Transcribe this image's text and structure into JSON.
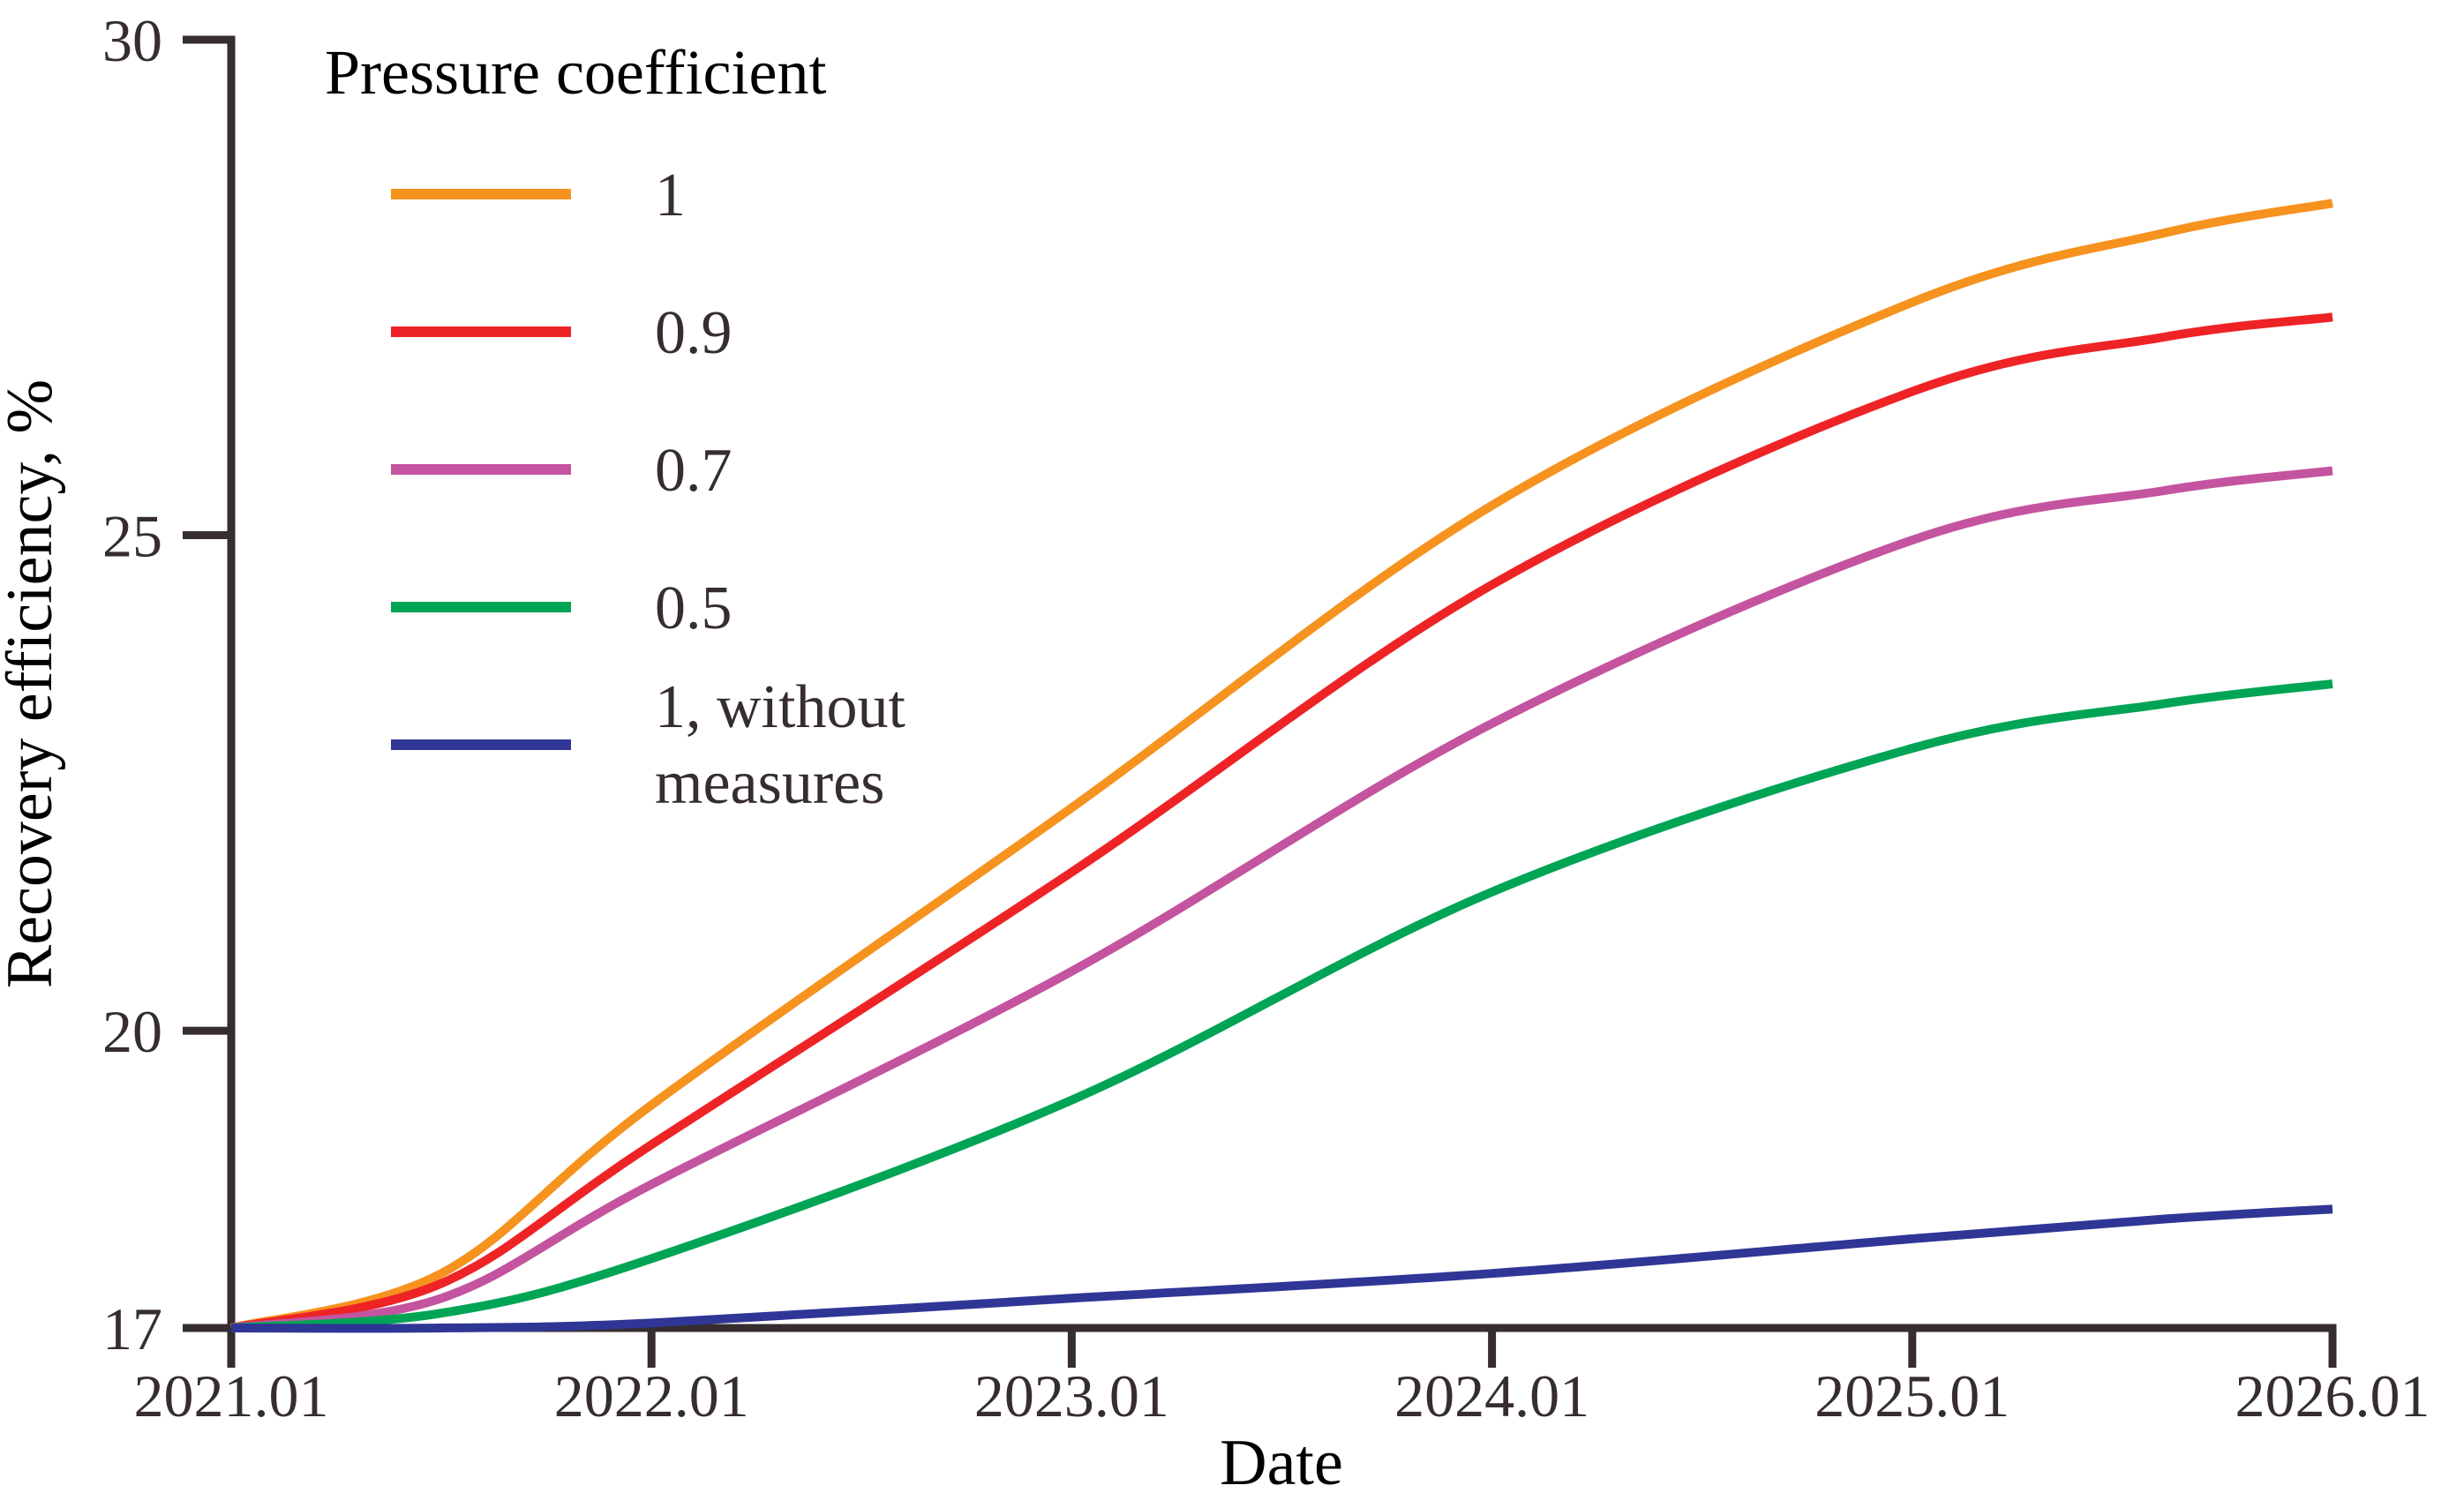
{
  "figure": {
    "background": "#ffffff",
    "text_color": "#362d2e",
    "axis_color": "#362d2e"
  },
  "chart_data": {
    "type": "line",
    "title": "",
    "xlabel": "Date",
    "ylabel": "Recovery efficiency, %",
    "xlim": [
      0,
      5
    ],
    "ylim": [
      17,
      30
    ],
    "grid": false,
    "legend_position": "upper-left-inside",
    "legend_title": "Pressure coefficient",
    "x_ticks": [
      {
        "label": "2021.01",
        "value": 0
      },
      {
        "label": "2022.01",
        "value": 1
      },
      {
        "label": "2023.01",
        "value": 2
      },
      {
        "label": "2024.01",
        "value": 3
      },
      {
        "label": "2025.01",
        "value": 4
      },
      {
        "label": "2026.01",
        "value": 5
      }
    ],
    "y_ticks": [
      {
        "label": "17",
        "value": 17
      },
      {
        "label": "20",
        "value": 20
      },
      {
        "label": "25",
        "value": 25
      },
      {
        "label": "30",
        "value": 30
      }
    ],
    "x_anchors": [
      0,
      0.5,
      1,
      2,
      3,
      4,
      4.6,
      5
    ],
    "series": [
      {
        "name": "1",
        "legend_lines": [
          "1"
        ],
        "color": "#f6921e",
        "values": [
          17.0,
          17.55,
          19.25,
          22.25,
          25.3,
          27.35,
          28.05,
          28.35
        ]
      },
      {
        "name": "0.9",
        "legend_lines": [
          "0.9"
        ],
        "color": "#ee2326",
        "values": [
          17.0,
          17.45,
          18.85,
          21.6,
          24.5,
          26.45,
          27.0,
          27.2
        ]
      },
      {
        "name": "0.7",
        "legend_lines": [
          "0.7"
        ],
        "color": "#c4549f",
        "values": [
          17.0,
          17.3,
          18.45,
          20.6,
          23.1,
          24.95,
          25.45,
          25.65
        ]
      },
      {
        "name": "0.5",
        "legend_lines": [
          "0.5"
        ],
        "color": "#00a455",
        "values": [
          17.0,
          17.15,
          17.7,
          19.3,
          21.4,
          22.85,
          23.3,
          23.5
        ]
      },
      {
        "name": "1, without measures",
        "legend_lines": [
          "1, without",
          "measures"
        ],
        "color": "#303695",
        "values": [
          17.0,
          17.0,
          17.05,
          17.3,
          17.55,
          17.9,
          18.1,
          18.2
        ]
      }
    ]
  }
}
